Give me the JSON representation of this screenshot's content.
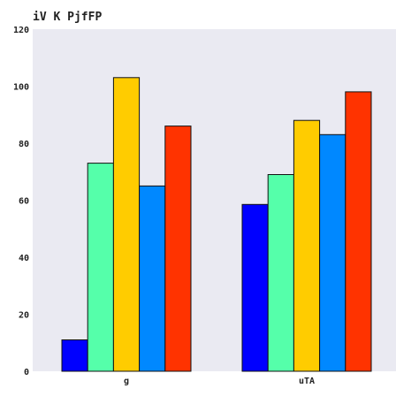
{
  "chart_data": {
    "type": "bar",
    "title": "iV K PjfFP",
    "xlabel": "",
    "ylabel": "",
    "categories": [
      "g",
      "uTA"
    ],
    "series": [
      {
        "values": [
          11,
          58.5
        ],
        "color": "#0000ff"
      },
      {
        "values": [
          73,
          69
        ],
        "color": "#55ffaa"
      },
      {
        "values": [
          103,
          88
        ],
        "color": "#ffcc00"
      },
      {
        "values": [
          65,
          83
        ],
        "color": "#0088ff"
      },
      {
        "values": [
          86,
          98
        ],
        "color": "#ff3300"
      }
    ],
    "ylim": [
      0,
      120
    ],
    "yticks": [
      0,
      20,
      40,
      60,
      80,
      100,
      120
    ],
    "grid": false,
    "background": "#eaeaf2"
  }
}
